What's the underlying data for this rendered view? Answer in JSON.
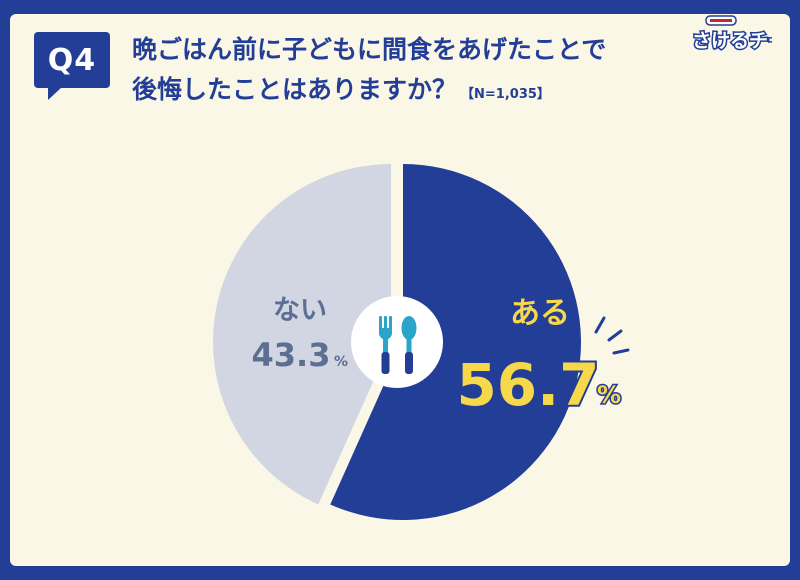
{
  "question": {
    "badge": "Q4",
    "line1": "晩ごはん前に子どもに間食をあげたことで",
    "line2": "後悔したことはありますか？",
    "sample": "【N=1,035】"
  },
  "logo_text": "さけるチーズ",
  "icons": [
    "fork-icon",
    "spoon-icon"
  ],
  "colors": {
    "background": "#233e97",
    "card": "#fbf7e6",
    "yes_slice": "#233e97",
    "no_slice": "#d2d6e2",
    "yes_value": "#f6d84a",
    "no_text": "#5c6f92",
    "utensil": "#2aa5c9"
  },
  "chart_data": {
    "type": "pie",
    "categories": [
      "ある",
      "ない"
    ],
    "values": [
      56.7,
      43.3
    ],
    "value_labels": [
      "56.7",
      "43.3"
    ],
    "unit": "%"
  }
}
